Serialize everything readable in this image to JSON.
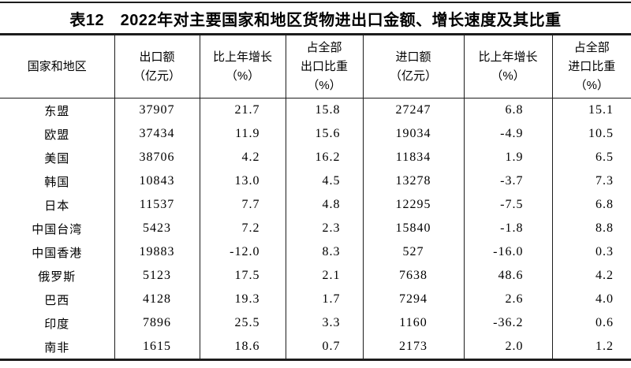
{
  "title": "表12　2022年对主要国家和地区货物进出口金额、增长速度及其比重",
  "table": {
    "columns": [
      {
        "align": "center",
        "label_lines": [
          "国家和地区"
        ]
      },
      {
        "align": "center",
        "label_lines": [
          "出口额",
          "（亿元）"
        ]
      },
      {
        "align": "right",
        "label_lines": [
          "比上年增长",
          "（%）"
        ]
      },
      {
        "align": "right",
        "label_lines": [
          "占全部",
          "出口比重",
          "（%）"
        ]
      },
      {
        "align": "center",
        "label_lines": [
          "进口额",
          "（亿元）"
        ]
      },
      {
        "align": "right",
        "label_lines": [
          "比上年增长",
          "（%）"
        ]
      },
      {
        "align": "right",
        "label_lines": [
          "占全部",
          "进口比重",
          "（%）"
        ]
      }
    ],
    "rows": [
      {
        "region": "东盟",
        "values": [
          "37907",
          "21.7",
          "15.8",
          "27247",
          "6.8",
          "15.1"
        ]
      },
      {
        "region": "欧盟",
        "values": [
          "37434",
          "11.9",
          "15.6",
          "19034",
          "-4.9",
          "10.5"
        ]
      },
      {
        "region": "美国",
        "values": [
          "38706",
          "4.2",
          "16.2",
          "11834",
          "1.9",
          "6.5"
        ]
      },
      {
        "region": "韩国",
        "values": [
          "10843",
          "13.0",
          "4.5",
          "13278",
          "-3.7",
          "7.3"
        ]
      },
      {
        "region": "日本",
        "values": [
          "11537",
          "7.7",
          "4.8",
          "12295",
          "-7.5",
          "6.8"
        ]
      },
      {
        "region": "中国台湾",
        "values": [
          "5423",
          "7.2",
          "2.3",
          "15840",
          "-1.8",
          "8.8"
        ]
      },
      {
        "region": "中国香港",
        "values": [
          "19883",
          "-12.0",
          "8.3",
          "527",
          "-16.0",
          "0.3"
        ]
      },
      {
        "region": "俄罗斯",
        "values": [
          "5123",
          "17.5",
          "2.1",
          "7638",
          "48.6",
          "4.2"
        ]
      },
      {
        "region": "巴西",
        "values": [
          "4128",
          "19.3",
          "1.7",
          "7294",
          "2.6",
          "4.0"
        ]
      },
      {
        "region": "印度",
        "values": [
          "7896",
          "25.5",
          "3.3",
          "1160",
          "-36.2",
          "0.6"
        ]
      },
      {
        "region": "南非",
        "values": [
          "1615",
          "18.6",
          "0.7",
          "2173",
          "2.0",
          "1.2"
        ]
      }
    ]
  }
}
